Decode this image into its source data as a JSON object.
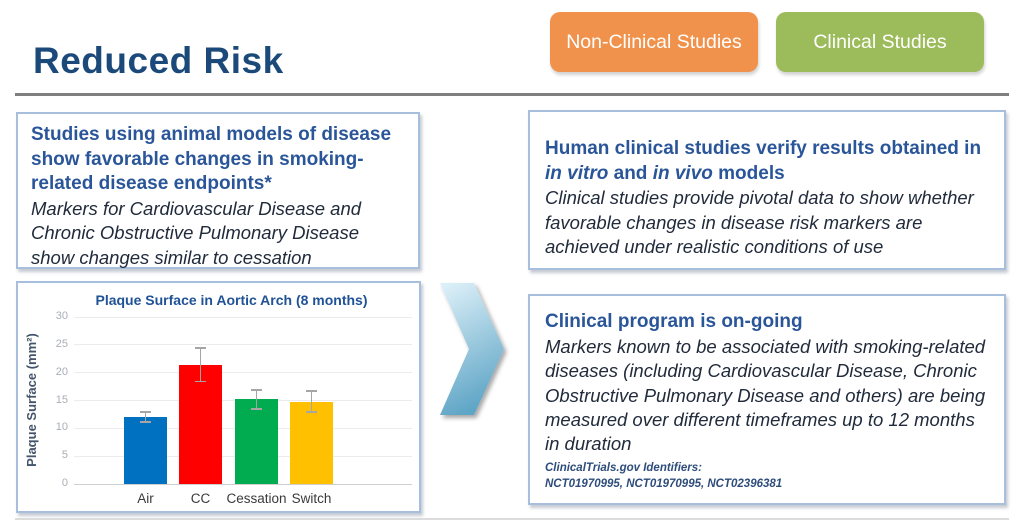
{
  "slide": {
    "title": "Reduced Risk"
  },
  "nav_buttons": {
    "non_clinical_label": "Non-Clinical Studies",
    "clinical_label": "Clinical Studies"
  },
  "animal_models_box": {
    "heading": "Studies using animal models of disease show favorable changes in smoking-related disease endpoints*",
    "body": "Markers for Cardiovascular Disease and Chronic Obstructive Pulmonary Disease show changes similar to cessation"
  },
  "clinical_verify_box": {
    "heading_part1": "Human clinical studies verify results obtained in ",
    "heading_italic1": "in vitro",
    "heading_part2": " and ",
    "heading_italic2": "in vivo",
    "heading_part3": " models",
    "body": "Clinical studies provide pivotal data to show whether favorable changes in disease risk markers are achieved under realistic conditions of use"
  },
  "clinical_program_box": {
    "heading": "Clinical program is on-going",
    "body": "Markers known to be associated with smoking-related diseases (including Cardiovascular Disease, Chronic Obstructive Pulmonary Disease and others) are being measured over different timeframes up to 12 months in duration",
    "footnote_label": "ClinicalTrials.gov Identifiers:",
    "footnote_ids": "NCT01970995, NCT01970995, NCT02396381"
  },
  "chart_data": {
    "type": "bar",
    "title": "Plaque Surface in Aortic Arch (8 months)",
    "ylabel": "Plaque Surface (mm²)",
    "xlabel": "",
    "categories": [
      "Air",
      "CC",
      "Cessation",
      "Switch"
    ],
    "values": [
      12,
      21.4,
      15.2,
      14.8
    ],
    "error_bars": [
      0.9,
      3,
      1.7,
      1.9
    ],
    "bar_colors": [
      "#0070C0",
      "#FE0000",
      "#00AC4F",
      "#FFC000"
    ],
    "ylim": [
      0,
      30
    ],
    "yticks": [
      0,
      5,
      10,
      15,
      20,
      25,
      30
    ],
    "grid": true,
    "legend": false
  },
  "icons": {
    "chevron": "chevron-right-icon"
  },
  "colors": {
    "title_blue": "#1B4A7A",
    "heading_blue": "#2A5699",
    "body_text": "#212B3B",
    "orange_button": "#F0924B",
    "green_button": "#9CBB5B",
    "box_border": "#A7BEDC",
    "divider_gray": "#7F7F7F",
    "error_bar": "#A6A6A6",
    "chevron_gradient_top": "#DDF0F8",
    "chevron_gradient_bottom": "#5FA5C6"
  }
}
